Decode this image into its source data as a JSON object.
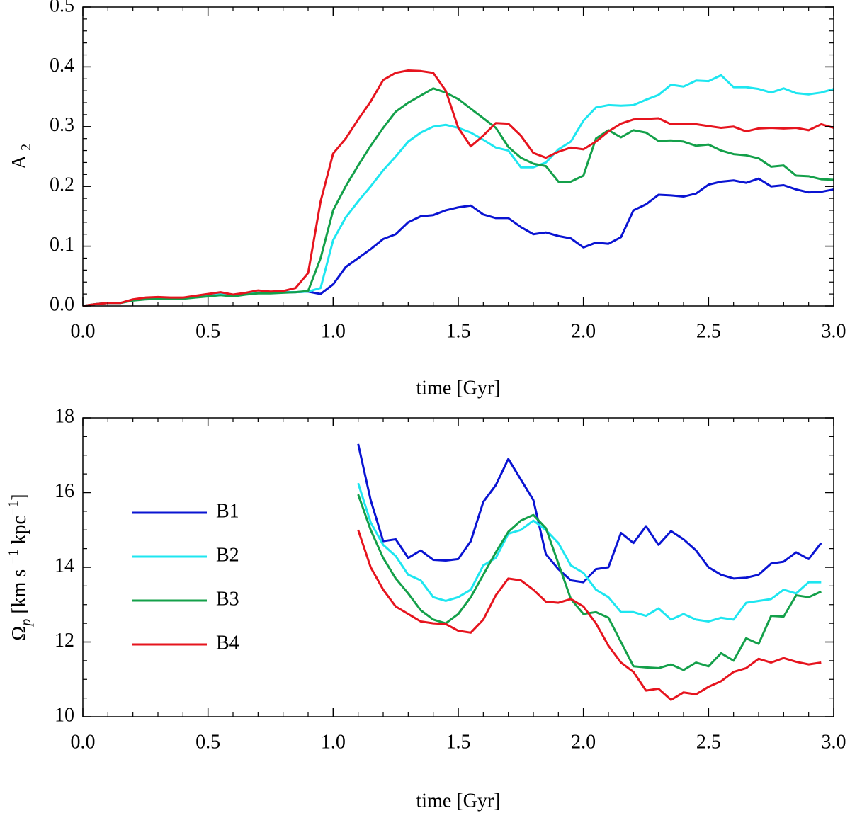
{
  "chart_data": [
    {
      "type": "line",
      "x": [
        0,
        0.05,
        0.1,
        0.15,
        0.2,
        0.25,
        0.3,
        0.35,
        0.4,
        0.45,
        0.5,
        0.55,
        0.6,
        0.65,
        0.7,
        0.75,
        0.8,
        0.85,
        0.9,
        0.95,
        1.0,
        1.05,
        1.1,
        1.15,
        1.2,
        1.25,
        1.3,
        1.35,
        1.4,
        1.45,
        1.5,
        1.55,
        1.6,
        1.65,
        1.7,
        1.75,
        1.8,
        1.85,
        1.9,
        1.95,
        2.0,
        2.05,
        2.1,
        2.15,
        2.2,
        2.25,
        2.3,
        2.35,
        2.4,
        2.45,
        2.5,
        2.55,
        2.6,
        2.65,
        2.7,
        2.75,
        2.8,
        2.85,
        2.9,
        2.95,
        3.0
      ],
      "series": [
        {
          "color": "#0a14d2",
          "values": [
            0,
            0.003,
            0.005,
            0.005,
            0.01,
            0.012,
            0.013,
            0.013,
            0.013,
            0.015,
            0.017,
            0.02,
            0.017,
            0.02,
            0.022,
            0.022,
            0.023,
            0.023,
            0.024,
            0.02,
            0.036,
            0.065,
            0.08,
            0.095,
            0.112,
            0.12,
            0.14,
            0.15,
            0.152,
            0.16,
            0.165,
            0.168,
            0.153,
            0.147,
            0.147,
            0.132,
            0.12,
            0.123,
            0.117,
            0.113,
            0.098,
            0.106,
            0.104,
            0.115,
            0.16,
            0.17,
            0.186,
            0.185,
            0.183,
            0.188,
            0.203,
            0.208,
            0.21,
            0.206,
            0.213,
            0.2,
            0.202,
            0.195,
            0.19,
            0.191,
            0.195
          ]
        },
        {
          "color": "#1ee6f0",
          "values": [
            0,
            0.003,
            0.005,
            0.005,
            0.01,
            0.012,
            0.013,
            0.013,
            0.013,
            0.015,
            0.017,
            0.02,
            0.017,
            0.02,
            0.022,
            0.022,
            0.023,
            0.023,
            0.024,
            0.03,
            0.11,
            0.148,
            0.175,
            0.2,
            0.227,
            0.25,
            0.275,
            0.29,
            0.3,
            0.303,
            0.298,
            0.29,
            0.278,
            0.265,
            0.26,
            0.232,
            0.232,
            0.24,
            0.262,
            0.275,
            0.31,
            0.332,
            0.336,
            0.335,
            0.336,
            0.345,
            0.353,
            0.37,
            0.367,
            0.377,
            0.376,
            0.386,
            0.366,
            0.366,
            0.363,
            0.357,
            0.364,
            0.356,
            0.354,
            0.357,
            0.363
          ]
        },
        {
          "color": "#14a04a",
          "values": [
            0,
            0.003,
            0.005,
            0.005,
            0.009,
            0.011,
            0.012,
            0.012,
            0.012,
            0.014,
            0.016,
            0.018,
            0.016,
            0.019,
            0.021,
            0.021,
            0.022,
            0.023,
            0.025,
            0.08,
            0.16,
            0.2,
            0.235,
            0.268,
            0.298,
            0.325,
            0.34,
            0.352,
            0.364,
            0.357,
            0.346,
            0.33,
            0.314,
            0.298,
            0.266,
            0.248,
            0.238,
            0.234,
            0.208,
            0.208,
            0.218,
            0.28,
            0.294,
            0.282,
            0.294,
            0.29,
            0.276,
            0.277,
            0.275,
            0.268,
            0.27,
            0.26,
            0.254,
            0.252,
            0.247,
            0.233,
            0.235,
            0.218,
            0.217,
            0.212,
            0.211
          ]
        },
        {
          "color": "#e6141e",
          "values": [
            0,
            0.003,
            0.005,
            0.005,
            0.011,
            0.014,
            0.015,
            0.014,
            0.014,
            0.017,
            0.02,
            0.023,
            0.019,
            0.022,
            0.026,
            0.024,
            0.025,
            0.03,
            0.055,
            0.175,
            0.255,
            0.28,
            0.312,
            0.342,
            0.378,
            0.39,
            0.394,
            0.393,
            0.39,
            0.36,
            0.298,
            0.267,
            0.285,
            0.306,
            0.305,
            0.285,
            0.256,
            0.248,
            0.258,
            0.265,
            0.262,
            0.275,
            0.292,
            0.305,
            0.312,
            0.313,
            0.314,
            0.304,
            0.304,
            0.304,
            0.301,
            0.298,
            0.3,
            0.292,
            0.297,
            0.298,
            0.297,
            0.298,
            0.294,
            0.304,
            0.298
          ]
        }
      ],
      "xlabel": "time [Gyr]",
      "ylabel": [
        "A",
        "2"
      ],
      "xlim": [
        0,
        3.0
      ],
      "xticks": [
        {
          "value": 0,
          "label": "0.0"
        },
        0.5,
        {
          "value": 1,
          "label": "1.0"
        },
        1.5,
        {
          "value": 2,
          "label": "2.0"
        },
        2.5,
        {
          "value": 3,
          "label": "3.0"
        }
      ],
      "ylim": [
        0,
        0.5
      ],
      "yticks": [
        {
          "value": 0,
          "label": "0.0"
        },
        0.1,
        0.2,
        0.3,
        0.4,
        0.5
      ],
      "minor_ticks": true,
      "legend": false
    },
    {
      "type": "line",
      "x": [
        1.1,
        1.15,
        1.2,
        1.25,
        1.3,
        1.35,
        1.4,
        1.45,
        1.5,
        1.55,
        1.6,
        1.65,
        1.7,
        1.75,
        1.8,
        1.85,
        1.9,
        1.95,
        2.0,
        2.05,
        2.1,
        2.15,
        2.2,
        2.25,
        2.3,
        2.35,
        2.4,
        2.45,
        2.5,
        2.55,
        2.6,
        2.65,
        2.7,
        2.75,
        2.8,
        2.85,
        2.9,
        2.95
      ],
      "series": [
        {
          "name": "B1",
          "color": "#0a14d2",
          "values": [
            17.3,
            15.8,
            14.7,
            14.75,
            14.25,
            14.45,
            14.2,
            14.18,
            14.22,
            14.7,
            15.75,
            16.2,
            16.9,
            16.35,
            15.8,
            14.35,
            13.95,
            13.65,
            13.6,
            13.95,
            14.0,
            14.92,
            14.65,
            15.1,
            14.6,
            14.97,
            14.75,
            14.45,
            14.0,
            13.8,
            13.7,
            13.72,
            13.8,
            14.1,
            14.15,
            14.4,
            14.22,
            14.65
          ]
        },
        {
          "name": "B2",
          "color": "#1ee6f0",
          "values": [
            16.25,
            15.2,
            14.6,
            14.3,
            13.8,
            13.65,
            13.2,
            13.1,
            13.2,
            13.4,
            14.05,
            14.25,
            14.9,
            15.0,
            15.25,
            15.0,
            14.65,
            14.05,
            13.85,
            13.4,
            13.2,
            12.8,
            12.8,
            12.7,
            12.9,
            12.6,
            12.75,
            12.6,
            12.55,
            12.65,
            12.6,
            13.05,
            13.1,
            13.15,
            13.4,
            13.3,
            13.6,
            13.6
          ]
        },
        {
          "name": "B3",
          "color": "#14a04a",
          "values": [
            15.95,
            15.0,
            14.25,
            13.7,
            13.3,
            12.85,
            12.6,
            12.5,
            12.75,
            13.2,
            13.8,
            14.4,
            14.95,
            15.25,
            15.4,
            15.05,
            14.1,
            13.15,
            12.75,
            12.8,
            12.65,
            12.0,
            11.35,
            11.32,
            11.3,
            11.4,
            11.25,
            11.45,
            11.35,
            11.7,
            11.5,
            12.1,
            11.95,
            12.7,
            12.68,
            13.25,
            13.2,
            13.35
          ]
        },
        {
          "name": "B4",
          "color": "#e6141e",
          "values": [
            15.0,
            14.0,
            13.4,
            12.95,
            12.75,
            12.55,
            12.5,
            12.48,
            12.3,
            12.25,
            12.6,
            13.25,
            13.7,
            13.65,
            13.4,
            13.08,
            13.05,
            13.15,
            12.95,
            12.5,
            11.9,
            11.45,
            11.2,
            10.7,
            10.75,
            10.45,
            10.65,
            10.6,
            10.8,
            10.95,
            11.2,
            11.3,
            11.55,
            11.45,
            11.57,
            11.47,
            11.4,
            11.45
          ]
        }
      ],
      "xlabel": "time [Gyr]",
      "ylabel": [
        "Ω",
        "p",
        " [km s ",
        "−1",
        " kpc",
        "−1",
        "]"
      ],
      "xlim": [
        0,
        3.0
      ],
      "xticks": [
        {
          "value": 0,
          "label": "0.0"
        },
        0.5,
        {
          "value": 1,
          "label": "1.0"
        },
        1.5,
        {
          "value": 2,
          "label": "2.0"
        },
        2.5,
        {
          "value": 3,
          "label": "3.0"
        }
      ],
      "ylim": [
        10,
        18
      ],
      "yticks": [
        10,
        12,
        14,
        16,
        18
      ],
      "minor_ticks": true,
      "legend": "center left"
    }
  ]
}
